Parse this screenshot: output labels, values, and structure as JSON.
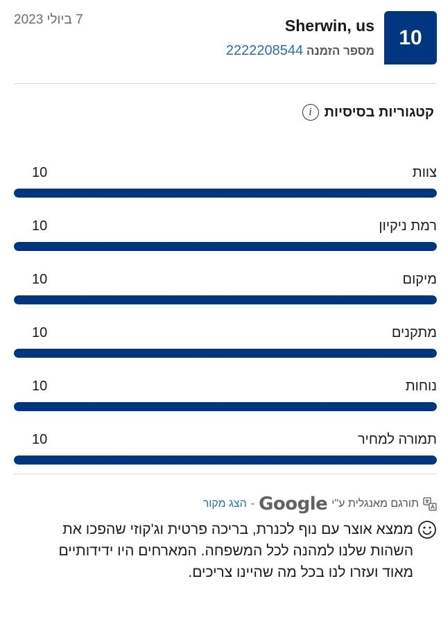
{
  "header": {
    "score": "10",
    "reviewer_name": "Sherwin, us",
    "order_label": "מספר הזמנה",
    "order_number": "2222208544",
    "date": "7 ביולי 2023"
  },
  "categories_title": "קטגוריות בסיסיות",
  "categories": [
    {
      "label": "צוות",
      "score": "10",
      "fill": 1.0
    },
    {
      "label": "רמת ניקיון",
      "score": "10",
      "fill": 1.0
    },
    {
      "label": "מיקום",
      "score": "10",
      "fill": 1.0
    },
    {
      "label": "מתקנים",
      "score": "10",
      "fill": 1.0
    },
    {
      "label": "נוחות",
      "score": "10",
      "fill": 1.0
    },
    {
      "label": "תמורה למחיר",
      "score": "10",
      "fill": 1.0
    }
  ],
  "translation": {
    "prefix": "תורגם מאנגלית ע\"י",
    "provider": "Google",
    "separator": "-",
    "show_original": "הצג מקור"
  },
  "review": {
    "text": "ממצא אוצר עם נוף לכנרת, בריכה פרטית וג'קוזי שהפכו את השהות שלנו למהנה לכל המשפחה. המארחים היו ידידותיים מאוד ועזרו לנו בכל מה שהיינו צריכים."
  },
  "colors": {
    "brand": "#003580",
    "link": "#2a6fad"
  }
}
